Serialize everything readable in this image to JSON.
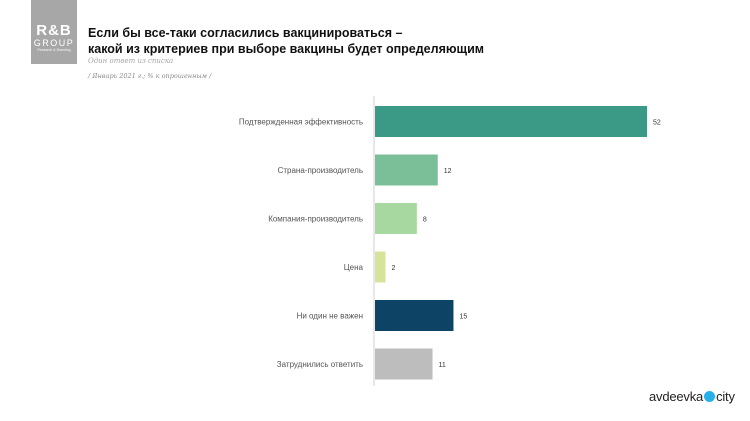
{
  "logo": {
    "line1": "R&B",
    "line2": "GROUP",
    "tagline": "Research & Branding"
  },
  "header": {
    "title_line1": "Если бы все-таки согласились вакцинироваться –",
    "title_line2": "какой из критериев при выборе вакцины будет определяющим",
    "subtitle": "Один ответ из списка",
    "note": "/ Январь 2021 г.; % к опрошенным /"
  },
  "chart_data": {
    "type": "bar",
    "orientation": "horizontal",
    "categories": [
      "Подтвержденная эффективность",
      "Страна-производитель",
      "Компания-производитель",
      "Цена",
      "Ни один не важен",
      "Затруднились ответить"
    ],
    "values": [
      52,
      12,
      8,
      2,
      15,
      11
    ],
    "colors": [
      "#3a9a85",
      "#7bbf98",
      "#a6d8a0",
      "#d6e39a",
      "#0d4466",
      "#bdbdbd"
    ],
    "xlim": [
      0,
      52
    ],
    "grid": false,
    "legend": "none"
  },
  "watermark": {
    "left": "avdeevka",
    "right": "city"
  }
}
